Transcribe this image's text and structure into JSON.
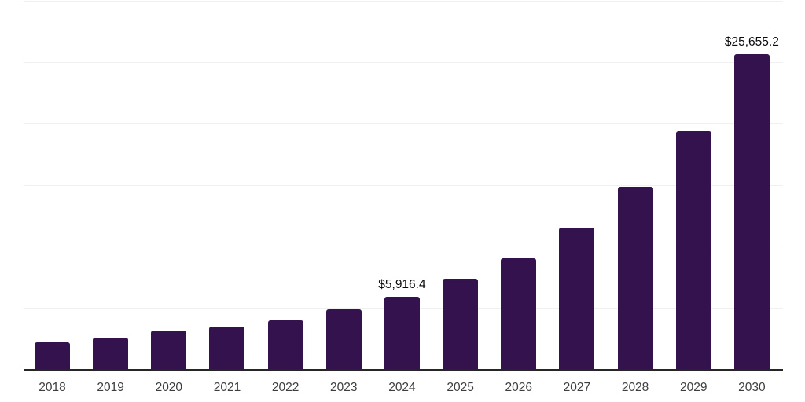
{
  "chart_data": {
    "type": "bar",
    "title": "",
    "xlabel": "",
    "ylabel": "",
    "categories": [
      "2018",
      "2019",
      "2020",
      "2021",
      "2022",
      "2023",
      "2024",
      "2025",
      "2026",
      "2027",
      "2028",
      "2029",
      "2030"
    ],
    "values": [
      2200,
      2580,
      3150,
      3450,
      3980,
      4860,
      5916.4,
      7330,
      9030,
      11510,
      14850,
      19360,
      25655.2
    ],
    "data_labels": {
      "2024": "$5,916.4",
      "2030": "$25,655.2"
    },
    "ylim": [
      0,
      30000
    ],
    "gridline_step": 5000,
    "grid": true,
    "legend": "none",
    "y_axis_tick_labels": "none",
    "colors": {
      "bar": "#33124e",
      "gridline": "#f0f0f0",
      "axis_line": "#262626",
      "year_label": "#3d3d3d",
      "data_label": "#0a0a0a",
      "background": "#ffffff"
    }
  }
}
